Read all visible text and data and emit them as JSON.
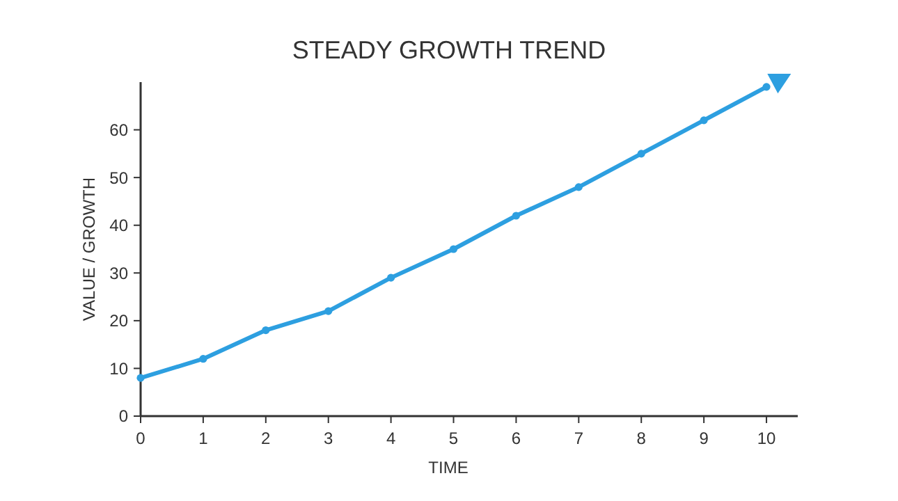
{
  "chart_data": {
    "type": "line",
    "title": "STEADY GROWTH TREND",
    "xlabel": "TIME",
    "ylabel": "VALUE / GROWTH",
    "x": [
      0,
      1,
      2,
      3,
      4,
      5,
      6,
      7,
      8,
      9,
      10
    ],
    "series": [
      {
        "color": "#2d9fe0",
        "values": [
          8,
          12,
          18,
          22,
          29,
          35,
          42,
          48,
          55,
          62,
          69
        ]
      }
    ],
    "xlim": [
      0,
      10.5
    ],
    "xticks": [
      0,
      1,
      2,
      3,
      4,
      5,
      6,
      7,
      8,
      9,
      10
    ],
    "ylim": [
      0,
      70
    ],
    "yticks": [
      0,
      10,
      20,
      30,
      40,
      50,
      60
    ],
    "grid": false,
    "marker": "circle",
    "line_style": "solid"
  }
}
